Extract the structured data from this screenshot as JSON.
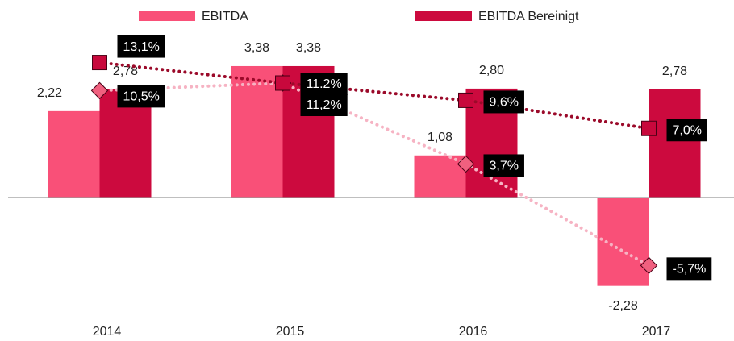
{
  "chart_data": {
    "type": "bar",
    "categories": [
      "2014",
      "2015",
      "2016",
      "2017"
    ],
    "series": [
      {
        "name": "EBITDA",
        "color": "#f95078",
        "values": [
          2.22,
          3.38,
          1.08,
          -2.28
        ],
        "value_labels": [
          "2,22",
          "3,38",
          "1,08",
          "-2,28"
        ]
      },
      {
        "name": "EBITDA Bereinigt",
        "color": "#cc0a3e",
        "values": [
          2.78,
          3.38,
          2.8,
          2.78
        ],
        "value_labels": [
          "2,78",
          "3,38",
          "2,80",
          "2,78"
        ]
      },
      {
        "type": "line",
        "axis": "y2",
        "color": "#f6b3c3",
        "marker": "diamond",
        "marker_color": "#f0607f",
        "values": [
          10.5,
          11.2,
          3.7,
          -5.7
        ],
        "value_labels": [
          "10,5%",
          "11,2%",
          "3,7%",
          "-5,7%"
        ]
      },
      {
        "type": "line",
        "axis": "y2",
        "color": "#9b0a2a",
        "marker": "square",
        "marker_color": "#c8083c",
        "values": [
          13.1,
          11.2,
          9.6,
          7.0
        ],
        "value_labels": [
          "13,1%",
          "11.2%",
          "9,6%",
          "7,0%"
        ]
      }
    ],
    "ylim": [
      -3.2,
      4.5
    ],
    "y2lim": [
      -10.9,
      16.8
    ],
    "legend": "top",
    "grid": false
  }
}
